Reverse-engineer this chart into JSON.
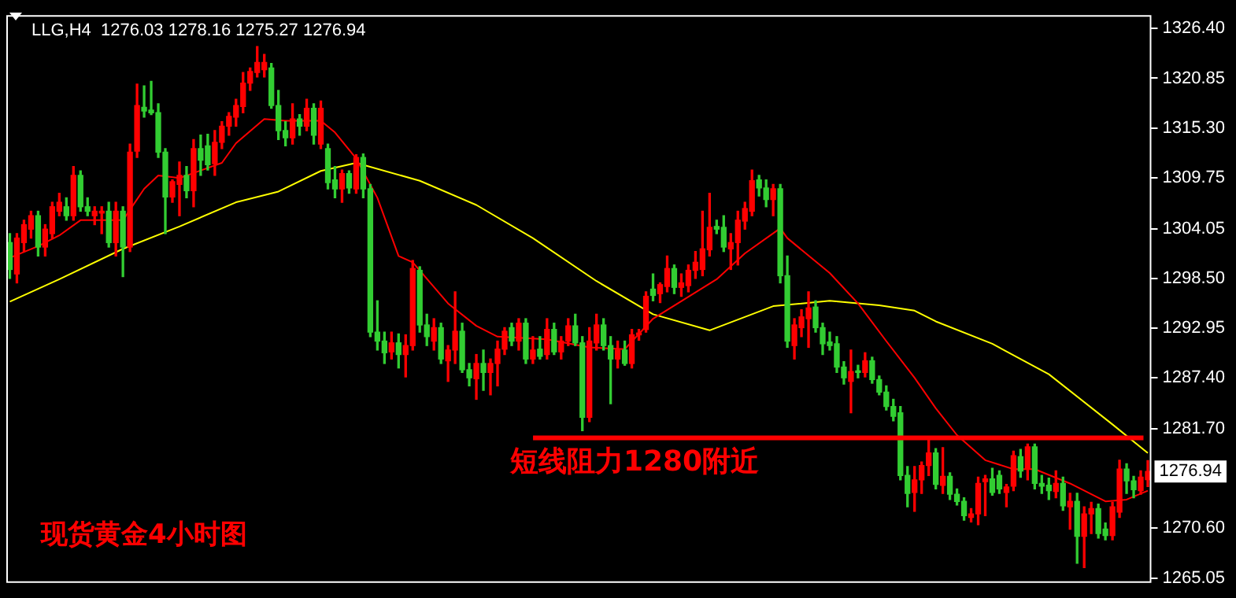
{
  "chart_data": {
    "type": "candlestick",
    "title": "LLG,H4  1276.03 1278.16 1275.27 1276.94",
    "categories": [
      null,
      null,
      null,
      null,
      null,
      null,
      null,
      null,
      null,
      null,
      null,
      null,
      null,
      null,
      null,
      null,
      null,
      null,
      null,
      null,
      null,
      null,
      null,
      null,
      null,
      null,
      null,
      null,
      null,
      null,
      null,
      null,
      null,
      null,
      null,
      null,
      null,
      null,
      null,
      null,
      null,
      null,
      null,
      null,
      null,
      null,
      null,
      null,
      null,
      null,
      null,
      null,
      null,
      null,
      null,
      null,
      null,
      null,
      null,
      null,
      null,
      null,
      null,
      null,
      null,
      null,
      null,
      null,
      null,
      null,
      null,
      null,
      null,
      null,
      null,
      null,
      null,
      null,
      null,
      null,
      null,
      null,
      null,
      null,
      null,
      null,
      null,
      null,
      null,
      null,
      null,
      null,
      null,
      null,
      null,
      null,
      null,
      null,
      null,
      null,
      null,
      null,
      null,
      null,
      null,
      null,
      null,
      null,
      null,
      null,
      null,
      null,
      null,
      null,
      null,
      null,
      null,
      null,
      null,
      null,
      null,
      null,
      null,
      null,
      null,
      null,
      null,
      null,
      null,
      null,
      null,
      null,
      null,
      null,
      null,
      null,
      null,
      null,
      null,
      null,
      null,
      null,
      null,
      null,
      null,
      null,
      null,
      null,
      null,
      null,
      null,
      null,
      null,
      null,
      null,
      null,
      null,
      null,
      null,
      null,
      null,
      null
    ],
    "ohlc": [
      [
        1302.5,
        1303.5,
        1298.5,
        1299.5
      ],
      [
        1299,
        1303.5,
        1298,
        1303
      ],
      [
        1302.5,
        1305,
        1301.5,
        1304.5
      ],
      [
        1304,
        1306,
        1303,
        1305.5
      ],
      [
        1305.5,
        1306,
        1301,
        1302
      ],
      [
        1302,
        1304.5,
        1301,
        1304
      ],
      [
        1303.5,
        1307,
        1303,
        1306.5
      ],
      [
        1306,
        1308,
        1305.5,
        1307
      ],
      [
        1306.5,
        1307.5,
        1305,
        1305.5
      ],
      [
        1305.5,
        1311,
        1305,
        1310
      ],
      [
        1310,
        1310.5,
        1306,
        1306.5
      ],
      [
        1306.5,
        1307.5,
        1305.5,
        1306
      ],
      [
        1305.5,
        1306.5,
        1304.5,
        1306
      ],
      [
        1305.8,
        1306.5,
        1303.5,
        1306
      ],
      [
        1306,
        1307,
        1302,
        1302.5
      ],
      [
        1302.5,
        1307,
        1301,
        1306
      ],
      [
        1306,
        1306.5,
        1298.7,
        1302
      ],
      [
        1302,
        1313.5,
        1301.5,
        1312.6
      ],
      [
        1312.7,
        1320.2,
        1312,
        1317.8
      ],
      [
        1317.6,
        1320,
        1316.5,
        1317.2
      ],
      [
        1317.3,
        1320.5,
        1316.8,
        1317
      ],
      [
        1317,
        1318,
        1312,
        1312.6
      ],
      [
        1312.6,
        1313,
        1303.5,
        1307.6
      ],
      [
        1307.6,
        1309.5,
        1307,
        1309.3
      ],
      [
        1309,
        1311.5,
        1305.5,
        1310
      ],
      [
        1310,
        1311,
        1307.5,
        1308.3
      ],
      [
        1308.3,
        1314,
        1306.5,
        1313
      ],
      [
        1313,
        1314.5,
        1310,
        1311.7
      ],
      [
        1313.3,
        1314.6,
        1310.6,
        1311.2
      ],
      [
        1311.3,
        1315,
        1310,
        1313.7
      ],
      [
        1313.7,
        1316,
        1313,
        1315.5
      ],
      [
        1315.5,
        1317,
        1314.5,
        1316.6
      ],
      [
        1316.5,
        1318.5,
        1315.5,
        1317.8
      ],
      [
        1317.7,
        1321.5,
        1317,
        1320.3
      ],
      [
        1320.3,
        1322,
        1319.5,
        1321.6
      ],
      [
        1321.5,
        1324.4,
        1321,
        1322.6
      ],
      [
        1321.8,
        1323.5,
        1321,
        1322.6
      ],
      [
        1322,
        1322.5,
        1317.5,
        1317.8
      ],
      [
        1317.8,
        1319.5,
        1314,
        1315
      ],
      [
        1315,
        1316,
        1313.3,
        1314.2
      ],
      [
        1314.2,
        1318,
        1313.5,
        1316.3
      ],
      [
        1316.3,
        1316.8,
        1314.5,
        1315.5
      ],
      [
        1315.5,
        1318.5,
        1315,
        1317.5
      ],
      [
        1317.5,
        1318,
        1313.5,
        1314.5
      ],
      [
        1313.5,
        1318.3,
        1313,
        1317.5
      ],
      [
        1313,
        1313.5,
        1308.5,
        1309.2
      ],
      [
        1309.5,
        1311,
        1307.5,
        1308.5
      ],
      [
        1308.5,
        1310.6,
        1307,
        1310.2
      ],
      [
        1310.2,
        1310.5,
        1308,
        1308.6
      ],
      [
        1308.5,
        1312.3,
        1308,
        1312
      ],
      [
        1312,
        1312.4,
        1307.5,
        1308.5
      ],
      [
        1308.5,
        1309,
        1292,
        1292.5
      ],
      [
        1292.5,
        1296,
        1290.5,
        1291.5
      ],
      [
        1291.5,
        1292.5,
        1289,
        1290.2
      ],
      [
        1290.3,
        1292.5,
        1289.5,
        1291.3
      ],
      [
        1291.3,
        1292.3,
        1288.5,
        1290
      ],
      [
        1290,
        1292.2,
        1287.5,
        1291
      ],
      [
        1291,
        1300.5,
        1290.5,
        1299.6
      ],
      [
        1299.4,
        1299.8,
        1292.5,
        1293.3
      ],
      [
        1293.3,
        1294.5,
        1291,
        1292
      ],
      [
        1291.5,
        1294,
        1290.5,
        1293
      ],
      [
        1293,
        1293.5,
        1289,
        1289.5
      ],
      [
        1289.3,
        1291,
        1287,
        1290.5
      ],
      [
        1290.5,
        1297,
        1289,
        1292.6
      ],
      [
        1292.6,
        1293.5,
        1288,
        1288.3
      ],
      [
        1288.3,
        1289,
        1286.5,
        1287.4
      ],
      [
        1287.3,
        1290,
        1285,
        1289
      ],
      [
        1289,
        1290.5,
        1286,
        1288
      ],
      [
        1288,
        1289.5,
        1285.5,
        1289
      ],
      [
        1289,
        1291.5,
        1286.5,
        1290.6
      ],
      [
        1290.6,
        1293,
        1290,
        1292.6
      ],
      [
        1293,
        1293.5,
        1291,
        1291.5
      ],
      [
        1291.5,
        1294,
        1290.5,
        1293.5
      ],
      [
        1293.5,
        1294,
        1289,
        1289.5
      ],
      [
        1289.5,
        1292,
        1289,
        1290.5
      ],
      [
        1290.6,
        1292,
        1289.5,
        1289.8
      ],
      [
        1290,
        1294,
        1289.5,
        1292.8
      ],
      [
        1292.8,
        1293.5,
        1290,
        1290.3
      ],
      [
        1290.3,
        1292,
        1289.5,
        1291.5
      ],
      [
        1291.5,
        1294,
        1291,
        1293.2
      ],
      [
        1293.2,
        1294.5,
        1291,
        1291.3
      ],
      [
        1291.3,
        1292,
        1281.5,
        1283
      ],
      [
        1283,
        1293,
        1282.5,
        1291.5
      ],
      [
        1291.3,
        1294.5,
        1290.5,
        1293.3
      ],
      [
        1293.3,
        1294,
        1290.5,
        1291
      ],
      [
        1291,
        1292,
        1284.5,
        1289.5
      ],
      [
        1289.5,
        1291.5,
        1288.5,
        1290.5
      ],
      [
        1290.5,
        1291.5,
        1288.8,
        1289
      ],
      [
        1289,
        1292.8,
        1288.5,
        1292.2
      ],
      [
        1292.2,
        1292.8,
        1291.6,
        1292.4
      ],
      [
        1292.8,
        1297,
        1292.5,
        1296.5
      ],
      [
        1297.3,
        1299,
        1296,
        1296.6
      ],
      [
        1296.8,
        1298,
        1295.8,
        1297.8
      ],
      [
        1297.6,
        1301,
        1297,
        1299.6
      ],
      [
        1299.6,
        1300,
        1296.8,
        1297.5
      ],
      [
        1297.5,
        1299,
        1296.5,
        1298
      ],
      [
        1297.7,
        1300,
        1297,
        1299.4
      ],
      [
        1299.4,
        1301.5,
        1298.5,
        1300.3
      ],
      [
        1299.5,
        1306,
        1298.8,
        1301.8
      ],
      [
        1301.7,
        1308,
        1301,
        1304.2
      ],
      [
        1304.3,
        1305,
        1303.5,
        1304
      ],
      [
        1304.2,
        1305.5,
        1301.5,
        1302
      ],
      [
        1301.8,
        1303.5,
        1299.5,
        1302.5
      ],
      [
        1302.5,
        1306,
        1300,
        1305
      ],
      [
        1304.9,
        1307,
        1304,
        1306.3
      ],
      [
        1306,
        1310.6,
        1305.5,
        1309.4
      ],
      [
        1309.5,
        1310,
        1307.7,
        1308.6
      ],
      [
        1308.6,
        1309.5,
        1306.5,
        1307.3
      ],
      [
        1307.3,
        1309,
        1305.5,
        1308.5
      ],
      [
        1308.5,
        1309,
        1298,
        1298.8
      ],
      [
        1298.8,
        1301,
        1290.8,
        1291.5
      ],
      [
        1291,
        1294,
        1289.5,
        1293.3
      ],
      [
        1293,
        1295,
        1292,
        1294.2
      ],
      [
        1294,
        1297,
        1290.8,
        1295.2
      ],
      [
        1295.3,
        1296,
        1292.5,
        1293
      ],
      [
        1293,
        1293.5,
        1290,
        1291.2
      ],
      [
        1291.4,
        1292.5,
        1290.5,
        1291
      ],
      [
        1291.2,
        1292,
        1288,
        1288.6
      ],
      [
        1288.6,
        1289.2,
        1286.7,
        1287.4
      ],
      [
        1287,
        1290.5,
        1283.5,
        1288.1
      ],
      [
        1288,
        1288.8,
        1287.4,
        1288
      ],
      [
        1288,
        1290.2,
        1287.5,
        1289.3
      ],
      [
        1289.3,
        1289.7,
        1286.8,
        1287.2
      ],
      [
        1287.2,
        1287.6,
        1285.5,
        1285.8
      ],
      [
        1285.8,
        1286.5,
        1283.8,
        1284.2
      ],
      [
        1284.2,
        1285,
        1282.6,
        1283.1
      ],
      [
        1283.5,
        1284.2,
        1276,
        1276.5
      ],
      [
        1276.5,
        1277.5,
        1273,
        1274.5
      ],
      [
        1274.6,
        1277.5,
        1272.5,
        1276
      ],
      [
        1276,
        1278,
        1274.5,
        1277.6
      ],
      [
        1277.6,
        1280.5,
        1276.5,
        1279
      ],
      [
        1279,
        1279.5,
        1275,
        1275.5
      ],
      [
        1275.4,
        1279.6,
        1274.5,
        1276.4
      ],
      [
        1276.4,
        1276.8,
        1273.8,
        1274.4
      ],
      [
        1274.4,
        1275,
        1273.2,
        1273.6
      ],
      [
        1273.6,
        1274,
        1271.5,
        1272
      ],
      [
        1271.8,
        1272.8,
        1271.3,
        1272.2
      ],
      [
        1272.2,
        1276.3,
        1271,
        1275.6
      ],
      [
        1275.8,
        1276.5,
        1272,
        1276.1
      ],
      [
        1276.1,
        1277.3,
        1274.3,
        1274.6
      ],
      [
        1276.5,
        1277,
        1274.5,
        1275
      ],
      [
        1274.6,
        1275.5,
        1273,
        1275.2
      ],
      [
        1275.3,
        1279.2,
        1274.8,
        1278.7
      ],
      [
        1278.6,
        1279.4,
        1276.3,
        1277
      ],
      [
        1277.2,
        1280,
        1276,
        1279.7
      ],
      [
        1279.7,
        1280,
        1275,
        1275.6
      ],
      [
        1275.6,
        1276.5,
        1274.5,
        1275.3
      ],
      [
        1275.4,
        1276.2,
        1273.8,
        1274.8
      ],
      [
        1274.7,
        1277,
        1274,
        1275.6
      ],
      [
        1275.6,
        1276.3,
        1272.6,
        1273.1
      ],
      [
        1273,
        1274.5,
        1270.5,
        1273.6
      ],
      [
        1273.6,
        1274.5,
        1266.7,
        1269.7
      ],
      [
        1269.7,
        1273,
        1266.2,
        1272.2
      ],
      [
        1272.2,
        1273.5,
        1270,
        1272.8
      ],
      [
        1272.8,
        1273.3,
        1269.5,
        1270
      ],
      [
        1270.5,
        1271.2,
        1269.3,
        1269.8
      ],
      [
        1269.8,
        1273.5,
        1269.3,
        1273
      ],
      [
        1272.4,
        1278.2,
        1271.8,
        1277.2
      ],
      [
        1277.2,
        1277.8,
        1274.5,
        1275.9
      ],
      [
        1275.9,
        1276.4,
        1274,
        1274.9
      ],
      [
        1274.8,
        1277,
        1274.4,
        1276.3
      ],
      [
        1276.03,
        1278.16,
        1275.27,
        1276.94
      ]
    ],
    "colors": [
      "#32cd32",
      "#ff0000",
      "#ff0000",
      "#ff0000",
      "#32cd32",
      "#ff0000",
      "#ff0000",
      "#ff0000",
      "#32cd32",
      "#ff0000",
      "#32cd32",
      "#32cd32",
      "#ff0000",
      "#ff0000",
      "#32cd32",
      "#ff0000",
      "#32cd32",
      "#ff0000",
      "#ff0000",
      "#32cd32",
      "#32cd32",
      "#32cd32",
      "#32cd32",
      "#ff0000",
      "#ff0000",
      "#32cd32",
      "#ff0000",
      "#32cd32",
      "#32cd32",
      "#ff0000",
      "#ff0000",
      "#ff0000",
      "#ff0000",
      "#ff0000",
      "#ff0000",
      "#ff0000",
      "#ff0000",
      "#32cd32",
      "#32cd32",
      "#32cd32",
      "#ff0000",
      "#32cd32",
      "#ff0000",
      "#32cd32",
      "#ff0000",
      "#32cd32",
      "#32cd32",
      "#ff0000",
      "#32cd32",
      "#ff0000",
      "#32cd32",
      "#32cd32",
      "#32cd32",
      "#32cd32",
      "#ff0000",
      "#32cd32",
      "#ff0000",
      "#ff0000",
      "#32cd32",
      "#32cd32",
      "#ff0000",
      "#32cd32",
      "#ff0000",
      "#ff0000",
      "#32cd32",
      "#32cd32",
      "#ff0000",
      "#32cd32",
      "#ff0000",
      "#ff0000",
      "#ff0000",
      "#32cd32",
      "#ff0000",
      "#32cd32",
      "#ff0000",
      "#32cd32",
      "#ff0000",
      "#32cd32",
      "#ff0000",
      "#ff0000",
      "#32cd32",
      "#32cd32",
      "#ff0000",
      "#ff0000",
      "#32cd32",
      "#32cd32",
      "#ff0000",
      "#32cd32",
      "#ff0000",
      "#ff0000",
      "#ff0000",
      "#32cd32",
      "#ff0000",
      "#ff0000",
      "#32cd32",
      "#ff0000",
      "#ff0000",
      "#ff0000",
      "#ff0000",
      "#ff0000",
      "#32cd32",
      "#32cd32",
      "#ff0000",
      "#ff0000",
      "#ff0000",
      "#ff0000",
      "#32cd32",
      "#32cd32",
      "#ff0000",
      "#32cd32",
      "#32cd32",
      "#ff0000",
      "#ff0000",
      "#ff0000",
      "#32cd32",
      "#32cd32",
      "#32cd32",
      "#32cd32",
      "#32cd32",
      "#ff0000",
      "#32cd32",
      "#ff0000",
      "#32cd32",
      "#32cd32",
      "#32cd32",
      "#32cd32",
      "#32cd32",
      "#32cd32",
      "#ff0000",
      "#ff0000",
      "#ff0000",
      "#32cd32",
      "#ff0000",
      "#32cd32",
      "#32cd32",
      "#32cd32",
      "#ff0000",
      "#ff0000",
      "#ff0000",
      "#32cd32",
      "#32cd32",
      "#ff0000",
      "#ff0000",
      "#32cd32",
      "#ff0000",
      "#32cd32",
      "#32cd32",
      "#32cd32",
      "#ff0000",
      "#32cd32",
      "#ff0000",
      "#32cd32",
      "#ff0000",
      "#ff0000",
      "#32cd32",
      "#32cd32",
      "#ff0000",
      "#ff0000",
      "#32cd32",
      "#32cd32",
      "#ff0000",
      "#ff0000"
    ],
    "series": [
      {
        "type": "line",
        "color": "#ff0000",
        "values": [
          1300.8,
          null,
          null,
          null,
          1302.1,
          null,
          null,
          1303.3,
          null,
          null,
          1305,
          null,
          null,
          null,
          null,
          null,
          1305,
          null,
          null,
          1308.5,
          null,
          1310,
          null,
          null,
          1309.7,
          null,
          null,
          null,
          null,
          null,
          1311.4,
          null,
          1313.6,
          null,
          null,
          null,
          1316.3,
          null,
          null,
          1316.1,
          null,
          null,
          null,
          null,
          1316.1,
          null,
          1314.8,
          null,
          null,
          1311.9,
          null,
          null,
          1307.5,
          null,
          null,
          1301,
          null,
          1300.3,
          null,
          null,
          null,
          null,
          1295.7,
          null,
          null,
          null,
          1293.2,
          null,
          null,
          1292,
          null,
          null,
          null,
          null,
          null,
          null,
          1291.7,
          null,
          null,
          null,
          null,
          null,
          1290.8,
          null,
          null,
          null,
          null,
          1290.6,
          null,
          null,
          null,
          1294,
          null,
          null,
          null,
          null,
          null,
          null,
          null,
          null,
          1298.4,
          null,
          null,
          null,
          1301.3,
          null,
          null,
          null,
          null,
          1304.1,
          1303,
          null,
          null,
          null,
          null,
          null,
          1299.1,
          null,
          null,
          null,
          1295.7,
          null,
          null,
          null,
          1291.5,
          null,
          null,
          null,
          1287.4,
          null,
          null,
          1284,
          null,
          null,
          1281,
          null,
          null,
          null,
          1278.2,
          null,
          null,
          null,
          1277.2,
          null,
          null,
          1277.2,
          null,
          null,
          null,
          null,
          1275.6,
          null,
          null,
          null,
          null,
          1273.6,
          null,
          null,
          1273.8,
          null,
          null,
          1274.8
        ]
      },
      {
        "type": "line",
        "color": "#ffff00",
        "values": [
          1295.9,
          null,
          null,
          null,
          null,
          null,
          null,
          1298.4,
          null,
          null,
          null,
          null,
          null,
          null,
          null,
          null,
          1301.8,
          null,
          null,
          null,
          null,
          null,
          null,
          null,
          1304.3,
          null,
          null,
          null,
          null,
          null,
          null,
          null,
          1307,
          null,
          null,
          null,
          null,
          null,
          1308.2,
          null,
          null,
          null,
          null,
          null,
          1310.5,
          null,
          null,
          null,
          null,
          1311.4,
          null,
          null,
          null,
          null,
          null,
          null,
          null,
          null,
          1309.4,
          null,
          null,
          null,
          null,
          null,
          null,
          null,
          1306.7,
          null,
          null,
          null,
          null,
          null,
          null,
          null,
          1303,
          null,
          null,
          null,
          null,
          null,
          null,
          null,
          null,
          1298.2,
          null,
          null,
          null,
          null,
          null,
          null,
          null,
          1294.5,
          null,
          null,
          null,
          null,
          null,
          null,
          null,
          1292.7,
          null,
          null,
          null,
          null,
          null,
          null,
          null,
          null,
          1295.4,
          null,
          null,
          null,
          null,
          null,
          null,
          null,
          1296,
          null,
          null,
          null,
          null,
          null,
          null,
          1295.5,
          null,
          null,
          null,
          null,
          1294.9,
          null,
          null,
          1293.7,
          null,
          null,
          null,
          null,
          null,
          null,
          null,
          1291.2,
          null,
          null,
          null,
          null,
          null,
          null,
          null,
          1287.8,
          null,
          null,
          null,
          null,
          null,
          null,
          null,
          null,
          1282.2,
          null,
          null,
          null,
          null,
          1279
        ]
      }
    ],
    "ylim": [
      1264.5,
      1327.9
    ],
    "yticks": [
      {
        "value": 1326.4,
        "label": "1326.40"
      },
      {
        "value": 1320.85,
        "label": "1320.85"
      },
      {
        "value": 1315.3,
        "label": "1315.30"
      },
      {
        "value": 1309.75,
        "label": "1309.75"
      },
      {
        "value": 1304.05,
        "label": "1304.05"
      },
      {
        "value": 1298.5,
        "label": "1298.50"
      },
      {
        "value": 1292.95,
        "label": "1292.95"
      },
      {
        "value": 1287.4,
        "label": "1287.40"
      },
      {
        "value": 1281.7,
        "label": "1281.70"
      },
      {
        "value": 1270.6,
        "label": "1270.60"
      },
      {
        "value": 1265.05,
        "label": "1265.05"
      }
    ],
    "ref_lines": [
      {
        "axis": "y",
        "value": 1280.7,
        "label": "短线阻力1280附近",
        "color": "#ff0000"
      }
    ],
    "annotations": [
      "现货黄金4小时图",
      "1276.94"
    ],
    "grid": false,
    "legend": false
  }
}
